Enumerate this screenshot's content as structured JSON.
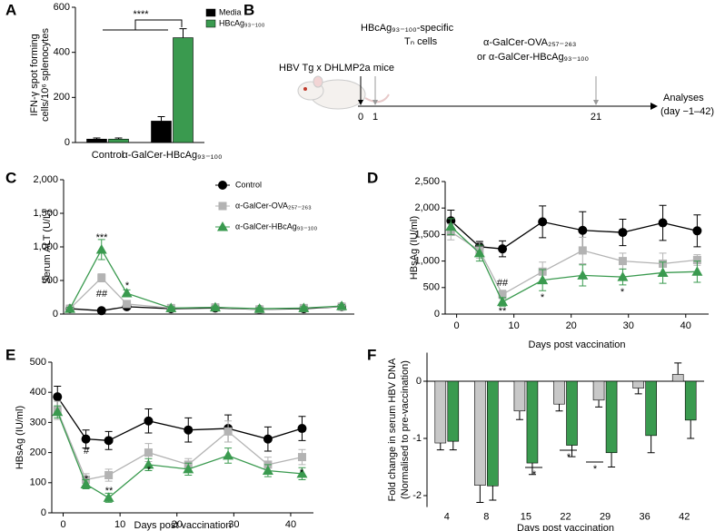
{
  "panel_labels": [
    "A",
    "B",
    "C",
    "D",
    "E",
    "F"
  ],
  "timeline": {
    "model": "HBV Tg x DHLMP2a mice",
    "event1": [
      "HBcAg₉₃₋₁₀₀-specific",
      "Tₙ cells"
    ],
    "event2": [
      "α-GalCer-OVA₂₅₇₋₂₆₃",
      "or α-GalCer-HBcAg₉₃₋₁₀₀"
    ],
    "end": [
      "Analyses",
      "(day −1–42)"
    ],
    "ticks": [
      "0",
      "1",
      "21"
    ]
  },
  "chart_data": [
    {
      "type": "bar",
      "ylabel": [
        "IFN-γ spot forming",
        "cells/10⁶ splenocytes"
      ],
      "categories": [
        "Control",
        "α-GalCer-HBcAg₉₃₋₁₀₀"
      ],
      "series": [
        {
          "name": "Media",
          "color": "#000000",
          "values": [
            15,
            95
          ],
          "errors": [
            5,
            20
          ]
        },
        {
          "name": "HBcAg₉₃₋₁₀₀",
          "color": "#3a9a4f",
          "values": [
            15,
            465
          ],
          "errors": [
            5,
            40
          ]
        }
      ],
      "ylim": [
        0,
        600
      ],
      "yticks": [
        0,
        200,
        400,
        600
      ],
      "legend": true,
      "annotations": [
        "****"
      ]
    },
    {
      "type": "line",
      "ylabel": "Serum ALT (U/L)",
      "x": [
        -1,
        4,
        8,
        15,
        22,
        29,
        36,
        42
      ],
      "xlim": [
        -2,
        44
      ],
      "ylim": [
        0,
        2000
      ],
      "yticks": [
        0,
        500,
        {
          "value": 1000,
          "label": "1,000"
        },
        {
          "value": 1500,
          "label": "1,500"
        },
        {
          "value": 2000,
          "label": "2,000"
        }
      ],
      "series": [
        {
          "name": "Control",
          "color": "#000000",
          "marker": "circle",
          "values": [
            80,
            50,
            110,
            80,
            90,
            70,
            80,
            110
          ],
          "errors": [
            20,
            10,
            20,
            15,
            20,
            15,
            15,
            20
          ]
        },
        {
          "name": "α-GalCer-OVA₂₅₇₋₂₆₃",
          "color": "#b3b3b3",
          "marker": "square",
          "values": [
            80,
            540,
            150,
            90,
            100,
            70,
            90,
            110
          ],
          "errors": [
            20,
            60,
            40,
            20,
            20,
            15,
            20,
            20
          ]
        },
        {
          "name": "α-GalCer-HBcAg₉₃₋₁₀₀",
          "color": "#3a9a4f",
          "marker": "triangle",
          "values": [
            80,
            960,
            310,
            90,
            100,
            80,
            90,
            120
          ],
          "errors": [
            20,
            150,
            50,
            20,
            20,
            15,
            20,
            20
          ]
        }
      ],
      "legend": true,
      "annotations": [
        "***",
        "##",
        "*"
      ]
    },
    {
      "type": "line",
      "ylabel": "HBsAg (IU/ml)",
      "xlabel": "Days post vaccination",
      "x": [
        -1,
        4,
        8,
        15,
        22,
        29,
        36,
        42
      ],
      "xlim": [
        -2,
        44
      ],
      "xticks": [
        0,
        10,
        20,
        30,
        40
      ],
      "ylim": [
        0,
        2500
      ],
      "yticks": [
        0,
        500,
        {
          "value": 1000,
          "label": "1,000"
        },
        {
          "value": 1500,
          "label": "1,500"
        },
        {
          "value": 2000,
          "label": "2,000"
        },
        {
          "value": 2500,
          "label": "2,500"
        }
      ],
      "series": [
        {
          "name": "Control",
          "color": "#000000",
          "marker": "circle",
          "values": [
            1760,
            1270,
            1230,
            1740,
            1580,
            1540,
            1720,
            1570
          ],
          "errors": [
            200,
            100,
            150,
            300,
            350,
            250,
            330,
            300
          ]
        },
        {
          "name": "α-GalCer-OVA₂₅₇₋₂₆₃",
          "color": "#b3b3b3",
          "marker": "square",
          "values": [
            1550,
            1200,
            370,
            800,
            1200,
            1000,
            950,
            1020
          ],
          "errors": [
            150,
            150,
            80,
            180,
            250,
            150,
            200,
            100
          ]
        },
        {
          "name": "α-GalCer-HBcAg₉₃₋₁₀₀",
          "color": "#3a9a4f",
          "marker": "triangle",
          "values": [
            1650,
            1150,
            230,
            640,
            730,
            700,
            780,
            800
          ],
          "errors": [
            150,
            150,
            80,
            200,
            200,
            150,
            200,
            200
          ]
        }
      ],
      "legend": false,
      "annotations": [
        "##",
        "**",
        "*",
        "*"
      ]
    },
    {
      "type": "line",
      "ylabel": "HBsAg (IU/ml)",
      "xlabel": "Days post vaccination",
      "x": [
        -1,
        4,
        8,
        15,
        22,
        29,
        36,
        42
      ],
      "xlim": [
        -2,
        44
      ],
      "xticks": [
        0,
        10,
        20,
        30,
        40
      ],
      "ylim": [
        0,
        500
      ],
      "yticks": [
        0,
        100,
        200,
        300,
        400,
        500
      ],
      "series": [
        {
          "name": "Control",
          "color": "#000000",
          "marker": "circle",
          "values": [
            385,
            245,
            240,
            305,
            275,
            280,
            245,
            280
          ],
          "errors": [
            35,
            30,
            30,
            40,
            40,
            45,
            40,
            40
          ]
        },
        {
          "name": "α-GalCer-OVA₂₅₇₋₂₆₃",
          "color": "#b3b3b3",
          "marker": "square",
          "values": [
            340,
            110,
            125,
            200,
            160,
            270,
            160,
            185
          ],
          "errors": [
            30,
            20,
            20,
            30,
            20,
            35,
            25,
            25
          ]
        },
        {
          "name": "α-GalCer-HBcAg₉₃₋₁₀₀",
          "color": "#3a9a4f",
          "marker": "triangle",
          "values": [
            335,
            95,
            50,
            160,
            145,
            190,
            140,
            130
          ],
          "errors": [
            20,
            15,
            15,
            20,
            20,
            25,
            20,
            20
          ]
        }
      ],
      "legend": false,
      "annotations": [
        "#",
        "*",
        "**",
        "*",
        "*"
      ]
    },
    {
      "type": "bar",
      "ylabel": [
        "Fold change in serum HBV DNA",
        "(Normalised to pre-vaccination)"
      ],
      "xlabel": "Days post vaccination",
      "categories": [
        "4",
        "8",
        "15",
        "22",
        "29",
        "36",
        "42"
      ],
      "series": [
        {
          "color": "#c8c8c8",
          "values": [
            -1.08,
            -1.82,
            -0.52,
            -0.4,
            -0.33,
            -0.12,
            0.12
          ],
          "errors": [
            0.12,
            0.3,
            0.15,
            0.12,
            0.12,
            0.1,
            0.2
          ]
        },
        {
          "color": "#3a9a4f",
          "values": [
            -1.05,
            -1.83,
            -1.43,
            -1.12,
            -1.25,
            -0.95,
            -0.68
          ],
          "errors": [
            0.15,
            0.25,
            0.2,
            0.2,
            0.25,
            0.3,
            0.32
          ]
        }
      ],
      "ylim": [
        -2.2,
        0.5
      ],
      "yticks": [
        -2,
        -1,
        0
      ],
      "legend": false,
      "annotations": [
        "*",
        "*",
        "*"
      ]
    }
  ]
}
